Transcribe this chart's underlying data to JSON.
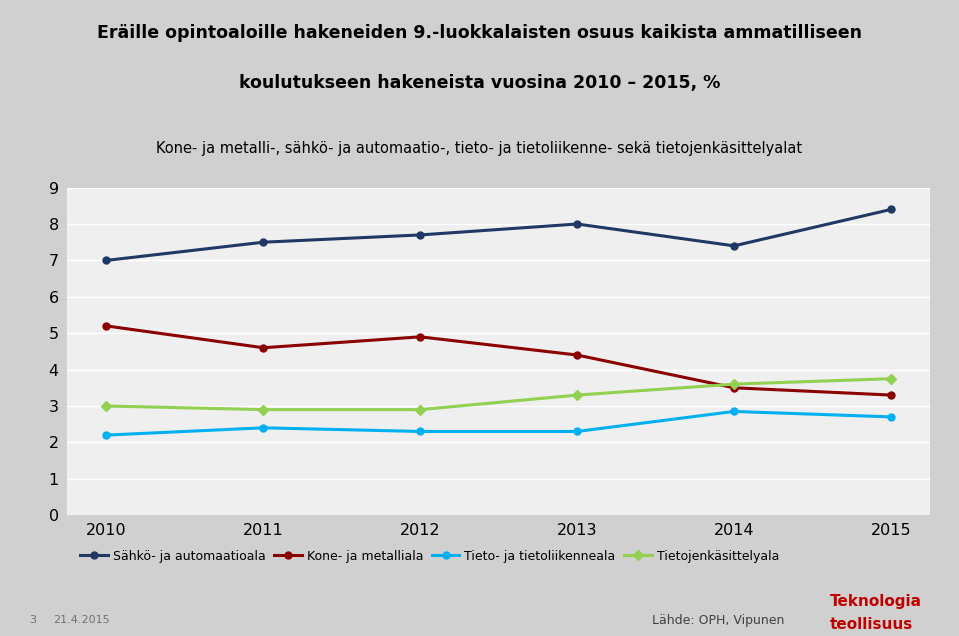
{
  "title_line1": "Eräille opintoaloille hakeneiden 9.-luokkalaisten osuus kaikista ammatilliseen",
  "title_line2": "koulutukseen hakeneista vuosina 2010 – 2015, %",
  "title_line3": "Kone- ja metalli-, sähkö- ja automaatio-, tieto- ja tietoliikenne- sekä tietojenkäsittelyalat",
  "years": [
    2010,
    2011,
    2012,
    2013,
    2014,
    2015
  ],
  "series": {
    "Sähkö- ja automaatioala": {
      "values": [
        7.0,
        7.5,
        7.7,
        8.0,
        7.4,
        8.4
      ],
      "color": "#1F3864",
      "marker": "o",
      "linewidth": 2.2
    },
    "Kone- ja metalliala": {
      "values": [
        5.2,
        4.6,
        4.9,
        4.4,
        3.5,
        3.3
      ],
      "color": "#8B0000",
      "marker": "o",
      "linewidth": 2.2
    },
    "Tieto- ja tietoliikenneala": {
      "values": [
        2.2,
        2.4,
        2.3,
        2.3,
        2.85,
        2.7
      ],
      "color": "#00B0F0",
      "marker": "o",
      "linewidth": 2.2
    },
    "Tietojenkäsittelyala": {
      "values": [
        3.0,
        2.9,
        2.9,
        3.3,
        3.6,
        3.75
      ],
      "color": "#92D050",
      "marker": "D",
      "linewidth": 2.2
    }
  },
  "ylim": [
    0,
    9
  ],
  "yticks": [
    0,
    1,
    2,
    3,
    4,
    5,
    6,
    7,
    8,
    9
  ],
  "bg_color": "#D0D0D0",
  "plot_bg_color": "#EFEFEF",
  "grid_color": "#FFFFFF",
  "title_bg_color": "#FFFFFF",
  "footer_text_left_num": "3",
  "footer_text_left_date": "21.4.2015",
  "footer_text_center": "Lähde: OPH, Vipunen",
  "footer_brand_line1": "Teknologia",
  "footer_brand_line2": "teollisuus",
  "footer_brand_color": "#C00000"
}
